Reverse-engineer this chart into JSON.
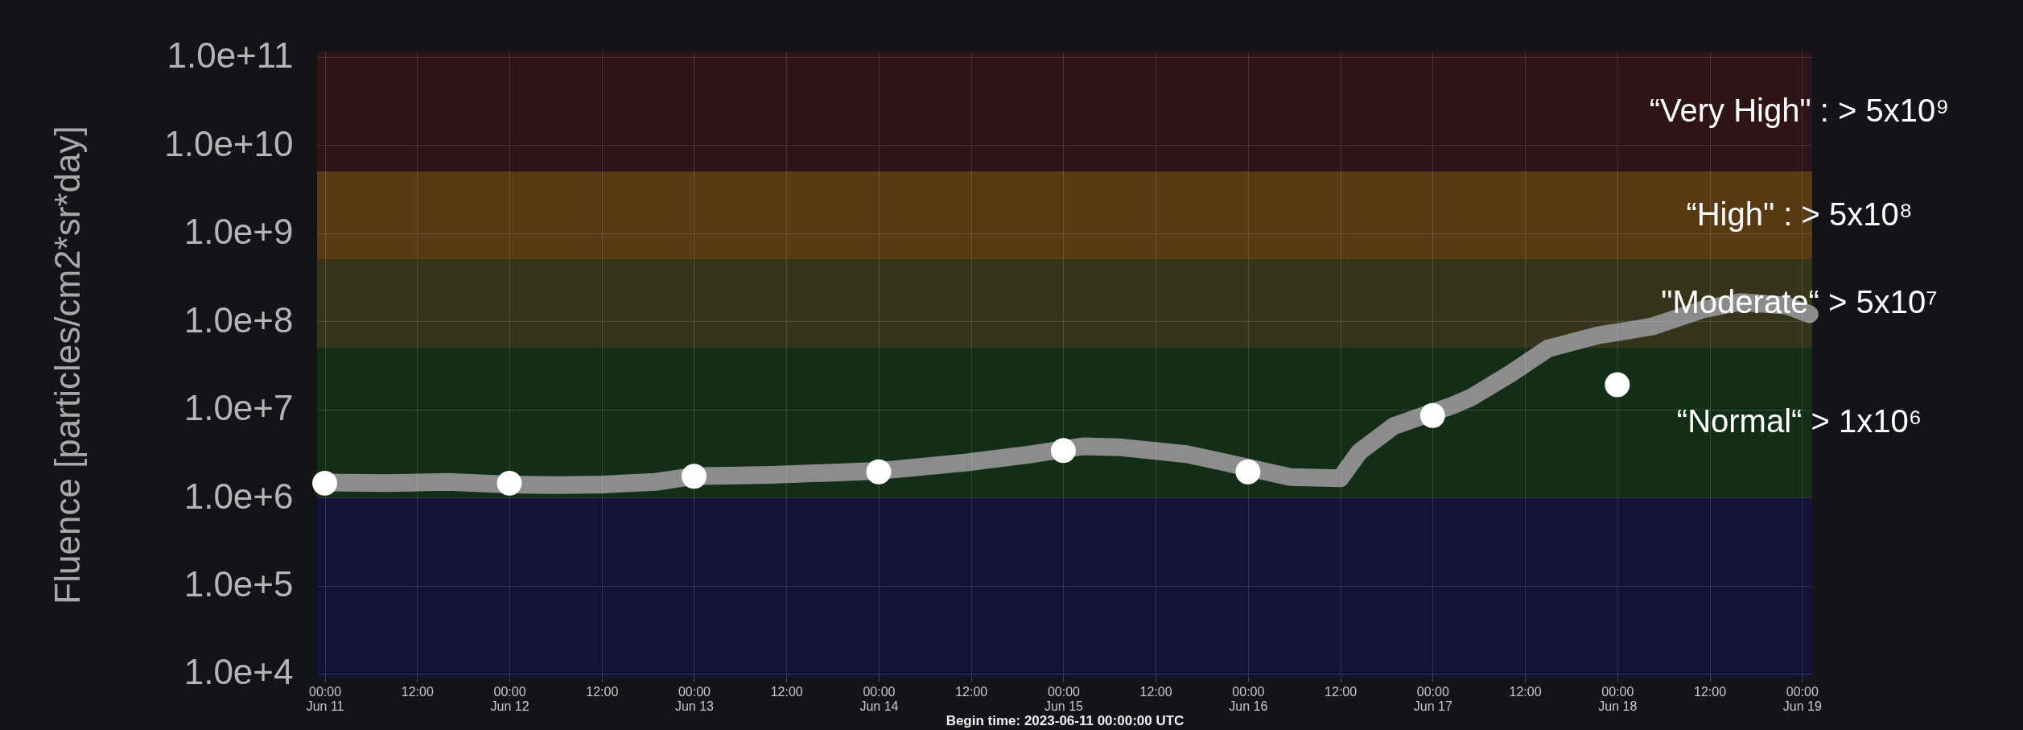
{
  "chart_data": {
    "type": "line",
    "ylabel": "Fluence [particles/cm2*sr*day]",
    "xlabel": "Begin time: 2023-06-11 00:00:00 UTC",
    "xlim": [
      "2023-06-10T23:00",
      "2023-06-19T01:20"
    ],
    "ylim": [
      9000,
      115000000000
    ],
    "log": "y",
    "grid": true,
    "xticks": [
      {
        "value": "2023-06-11T00:00",
        "label": "00:00\nJun 11"
      },
      {
        "value": "2023-06-11T12:00",
        "label": "12:00"
      },
      {
        "value": "2023-06-12T00:00",
        "label": "00:00\nJun 12"
      },
      {
        "value": "2023-06-12T12:00",
        "label": "12:00"
      },
      {
        "value": "2023-06-13T00:00",
        "label": "00:00\nJun 13"
      },
      {
        "value": "2023-06-13T12:00",
        "label": "12:00"
      },
      {
        "value": "2023-06-14T00:00",
        "label": "00:00\nJun 14"
      },
      {
        "value": "2023-06-14T12:00",
        "label": "12:00"
      },
      {
        "value": "2023-06-15T00:00",
        "label": "00:00\nJun 15"
      },
      {
        "value": "2023-06-15T12:00",
        "label": "12:00"
      },
      {
        "value": "2023-06-16T00:00",
        "label": "00:00\nJun 16"
      },
      {
        "value": "2023-06-16T12:00",
        "label": "12:00"
      },
      {
        "value": "2023-06-17T00:00",
        "label": "00:00\nJun 17"
      },
      {
        "value": "2023-06-17T12:00",
        "label": "12:00"
      },
      {
        "value": "2023-06-18T00:00",
        "label": "00:00\nJun 18"
      },
      {
        "value": "2023-06-18T12:00",
        "label": "12:00"
      },
      {
        "value": "2023-06-19T00:00",
        "label": "00:00\nJun 19"
      }
    ],
    "yticks": [
      {
        "value": 10000,
        "label": "1.0e+4"
      },
      {
        "value": 100000,
        "label": "1.0e+5"
      },
      {
        "value": 1000000,
        "label": "1.0e+6"
      },
      {
        "value": 10000000,
        "label": "1.0e+7"
      },
      {
        "value": 100000000,
        "label": "1.0e+8"
      },
      {
        "value": 1000000000,
        "label": "1.0e+9"
      },
      {
        "value": 10000000000,
        "label": "1.0e+10"
      },
      {
        "value": 100000000000,
        "label": "1.0e+11"
      }
    ],
    "bands": [
      {
        "axis": "y",
        "from": 9000,
        "to": 1000000,
        "color": "#13133a"
      },
      {
        "axis": "y",
        "from": 1000000,
        "to": 50000000,
        "color": "#132e17",
        "label": "“Normal“ > 1x10⁶"
      },
      {
        "axis": "y",
        "from": 50000000,
        "to": 500000000,
        "color": "#36341a",
        "label": "\"Moderate“ > 5x10⁷"
      },
      {
        "axis": "y",
        "from": 500000000,
        "to": 5000000000,
        "color": "#583a15",
        "label": "“High\" : > 5x10⁸"
      },
      {
        "axis": "y",
        "from": 5000000000,
        "to": 115000000000,
        "color": "#2e1419",
        "label": "“Very High\" : > 5x10⁹"
      }
    ],
    "series": [
      {
        "type": "line",
        "color": "#8c8c8c",
        "x": [
          "2023-06-11T00:00",
          "2023-06-11T08:00",
          "2023-06-11T16:00",
          "2023-06-12T00:00",
          "2023-06-12T06:00",
          "2023-06-12T12:00",
          "2023-06-12T19:00",
          "2023-06-13T00:00",
          "2023-06-13T10:00",
          "2023-06-14T00:00",
          "2023-06-14T11:30",
          "2023-06-14T20:00",
          "2023-06-15T02:30",
          "2023-06-15T07:30",
          "2023-06-15T16:00",
          "2023-06-15T21:00",
          "2023-06-16T05:30",
          "2023-06-16T12:00",
          "2023-06-16T14:30",
          "2023-06-16T19:00",
          "2023-06-17T02:30",
          "2023-06-17T05:00",
          "2023-06-17T10:00",
          "2023-06-17T15:00",
          "2023-06-17T21:30",
          "2023-06-18T04:30",
          "2023-06-18T11:00",
          "2023-06-18T16:00",
          "2023-06-18T22:00",
          "2023-06-19T01:00"
        ],
        "values": [
          1480000,
          1450000,
          1500000,
          1400000,
          1380000,
          1400000,
          1500000,
          1740000,
          1800000,
          2000000,
          2500000,
          3100000,
          3800000,
          3700000,
          3100000,
          2500000,
          1700000,
          1650000,
          3300000,
          6500000,
          11000000,
          13600000,
          25000000,
          49000000,
          69000000,
          87000000,
          135000000,
          165000000,
          150000000,
          120000000
        ]
      },
      {
        "type": "scatter",
        "color": "#ffffff",
        "marker": "circle",
        "x": [
          "2023-06-11T00:00",
          "2023-06-12T00:00",
          "2023-06-13T00:00",
          "2023-06-14T00:00",
          "2023-06-15T00:00",
          "2023-06-16T00:00",
          "2023-06-17T00:00",
          "2023-06-18T00:00"
        ],
        "values": [
          1450000,
          1450000,
          1740000,
          1950000,
          3400000,
          1950000,
          8500000,
          19000000
        ]
      }
    ]
  }
}
